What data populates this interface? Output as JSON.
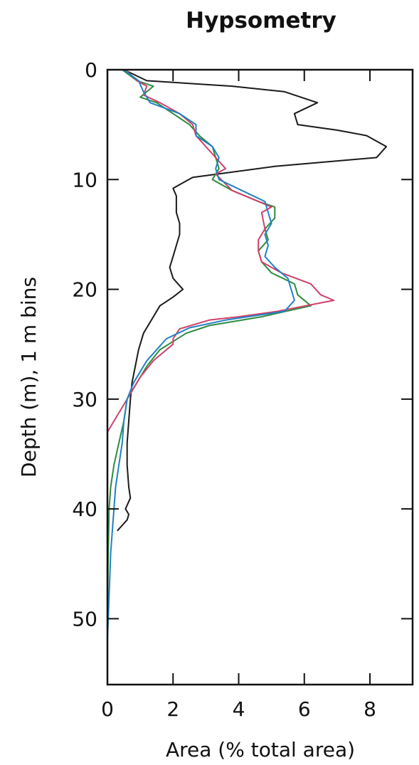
{
  "chart_data": {
    "type": "line",
    "title": "Hypsometry",
    "xlabel": "Area (% total area)",
    "ylabel": "Depth (m), 1 m bins",
    "xlim": [
      0,
      9.3
    ],
    "ylim": [
      0,
      56
    ],
    "y_inverted": true,
    "x_ticks": [
      0,
      2,
      4,
      6,
      8
    ],
    "y_ticks": [
      0,
      10,
      20,
      30,
      40,
      50
    ],
    "grid": false,
    "legend": "none",
    "series": [
      {
        "color": "#1a1a1a",
        "points": [
          [
            0.5,
            0
          ],
          [
            1.2,
            1
          ],
          [
            3.8,
            1.5
          ],
          [
            5.4,
            2
          ],
          [
            6.4,
            3
          ],
          [
            5.7,
            4
          ],
          [
            5.8,
            5
          ],
          [
            7,
            5.5
          ],
          [
            7.9,
            6
          ],
          [
            8.5,
            7
          ],
          [
            8.2,
            8
          ],
          [
            5.1,
            8.8
          ],
          [
            2.6,
            9.8
          ],
          [
            2.0,
            10.8
          ],
          [
            2.1,
            11.5
          ],
          [
            2.1,
            13
          ],
          [
            2.2,
            14
          ],
          [
            2.2,
            15
          ],
          [
            2.1,
            16
          ],
          [
            2.0,
            17
          ],
          [
            1.9,
            18
          ],
          [
            2.0,
            19
          ],
          [
            2.3,
            20
          ],
          [
            2.0,
            20.7
          ],
          [
            1.6,
            21.5
          ],
          [
            1.4,
            22.5
          ],
          [
            1.1,
            24
          ],
          [
            0.95,
            25.5
          ],
          [
            0.85,
            27
          ],
          [
            0.75,
            28.5
          ],
          [
            0.7,
            30
          ],
          [
            0.65,
            32
          ],
          [
            0.6,
            34
          ],
          [
            0.6,
            36
          ],
          [
            0.65,
            38
          ],
          [
            0.7,
            39
          ],
          [
            0.55,
            40
          ],
          [
            0.65,
            40.5
          ],
          [
            0.6,
            41
          ],
          [
            0.3,
            42
          ]
        ]
      },
      {
        "color": "#2e8b3d",
        "points": [
          [
            0.45,
            0
          ],
          [
            0.9,
            1
          ],
          [
            1.4,
            1.5
          ],
          [
            1.0,
            2.5
          ],
          [
            1.5,
            3
          ],
          [
            2.0,
            4
          ],
          [
            2.5,
            5
          ],
          [
            2.8,
            6
          ],
          [
            3.2,
            7
          ],
          [
            3.3,
            8
          ],
          [
            3.4,
            9
          ],
          [
            3.2,
            10
          ],
          [
            3.8,
            11
          ],
          [
            4.6,
            12
          ],
          [
            5.1,
            12.5
          ],
          [
            5.1,
            13.5
          ],
          [
            4.8,
            14.5
          ],
          [
            4.9,
            15.5
          ],
          [
            4.6,
            16.5
          ],
          [
            4.7,
            17.5
          ],
          [
            5.0,
            18.5
          ],
          [
            5.7,
            19.5
          ],
          [
            5.8,
            20.5
          ],
          [
            6.2,
            21.5
          ],
          [
            4.7,
            22.5
          ],
          [
            3.1,
            23.3
          ],
          [
            2.4,
            24
          ],
          [
            1.6,
            25.5
          ],
          [
            1.2,
            27
          ],
          [
            0.9,
            28.5
          ],
          [
            0.6,
            30
          ],
          [
            0.5,
            32
          ],
          [
            0.35,
            34
          ],
          [
            0.2,
            36
          ],
          [
            0.1,
            38
          ],
          [
            0.05,
            40
          ],
          [
            0.02,
            45
          ],
          [
            0,
            50
          ],
          [
            0,
            56
          ]
        ]
      },
      {
        "color": "#d0406a",
        "points": [
          [
            0.55,
            0
          ],
          [
            0.9,
            1
          ],
          [
            1.2,
            1.5
          ],
          [
            1.1,
            2.3
          ],
          [
            1.6,
            3
          ],
          [
            2.2,
            4
          ],
          [
            2.6,
            5
          ],
          [
            2.7,
            6
          ],
          [
            3.0,
            7
          ],
          [
            3.3,
            8
          ],
          [
            3.6,
            9
          ],
          [
            3.3,
            9.5
          ],
          [
            3.8,
            11
          ],
          [
            4.6,
            12
          ],
          [
            5.0,
            12.5
          ],
          [
            4.7,
            13
          ],
          [
            4.8,
            14.5
          ],
          [
            4.6,
            15.5
          ],
          [
            4.6,
            16.5
          ],
          [
            4.7,
            17.5
          ],
          [
            5.3,
            18.5
          ],
          [
            6.2,
            19.5
          ],
          [
            6.5,
            20.5
          ],
          [
            6.9,
            21
          ],
          [
            5.2,
            22
          ],
          [
            4.0,
            22.5
          ],
          [
            3.1,
            22.8
          ],
          [
            2.2,
            23.6
          ],
          [
            2.0,
            24.5
          ],
          [
            2.0,
            25
          ],
          [
            1.4,
            26.5
          ],
          [
            1.0,
            28
          ],
          [
            0.7,
            29.5
          ],
          [
            0.5,
            30.5
          ],
          [
            0.3,
            31.5
          ],
          [
            0.1,
            32.5
          ],
          [
            0,
            33
          ]
        ]
      },
      {
        "color": "#1f82c4",
        "points": [
          [
            0.5,
            0
          ],
          [
            0.95,
            1
          ],
          [
            1.1,
            2
          ],
          [
            1.3,
            3
          ],
          [
            2.2,
            4
          ],
          [
            2.7,
            5
          ],
          [
            2.7,
            6
          ],
          [
            3.2,
            7
          ],
          [
            3.4,
            8
          ],
          [
            3.3,
            9
          ],
          [
            3.4,
            10
          ],
          [
            4.1,
            11
          ],
          [
            4.8,
            12
          ],
          [
            4.9,
            13
          ],
          [
            5.0,
            14
          ],
          [
            4.8,
            15
          ],
          [
            4.9,
            16
          ],
          [
            4.8,
            17
          ],
          [
            5.1,
            18
          ],
          [
            5.5,
            19
          ],
          [
            5.6,
            20
          ],
          [
            5.7,
            21
          ],
          [
            5.4,
            22
          ],
          [
            3.6,
            22.8
          ],
          [
            2.5,
            23.5
          ],
          [
            1.8,
            24.5
          ],
          [
            1.5,
            25.5
          ],
          [
            1.2,
            26.5
          ],
          [
            1.0,
            27.5
          ],
          [
            0.8,
            28.5
          ],
          [
            0.6,
            30
          ],
          [
            0.5,
            32
          ],
          [
            0.45,
            34
          ],
          [
            0.35,
            36
          ],
          [
            0.25,
            38
          ],
          [
            0.2,
            40
          ],
          [
            0.1,
            44
          ],
          [
            0.05,
            48
          ],
          [
            0,
            52
          ],
          [
            0,
            56
          ]
        ]
      }
    ]
  }
}
